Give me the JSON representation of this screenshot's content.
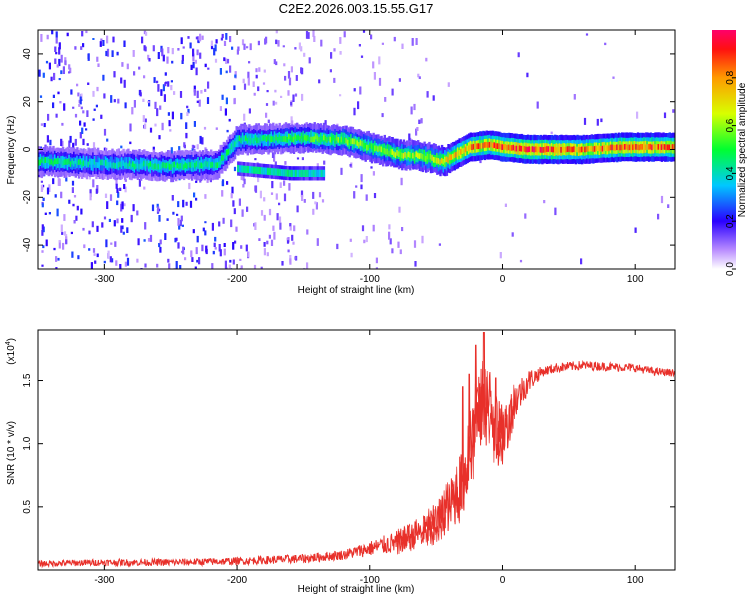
{
  "title": "C2E2.2026.003.15.55.G17",
  "chart_data": [
    {
      "type": "heatmap",
      "xlabel": "Height of straight line (km)",
      "ylabel": "Frequency (Hz)",
      "xlim": [
        -350,
        130
      ],
      "ylim": [
        -50,
        50
      ],
      "xticks": [
        -300,
        -200,
        -100,
        0,
        100
      ],
      "yticks": [
        -40,
        -20,
        0,
        20,
        40
      ],
      "colorbar": {
        "label": "Normalized spectral amplitude",
        "range": [
          0,
          1
        ],
        "ticks": [
          0.0,
          0.2,
          0.4,
          0.6,
          0.8
        ]
      },
      "ridge": {
        "description_points": [
          {
            "x": -350,
            "freq": -5,
            "amp": 0.45
          },
          {
            "x": -300,
            "freq": -6,
            "amp": 0.4
          },
          {
            "x": -250,
            "freq": -7,
            "amp": 0.45
          },
          {
            "x": -215,
            "freq": -6,
            "amp": 0.45
          },
          {
            "x": -200,
            "freq": 4,
            "amp": 0.45
          },
          {
            "x": -150,
            "freq": 5,
            "amp": 0.5
          },
          {
            "x": -120,
            "freq": 4,
            "amp": 0.55
          },
          {
            "x": -100,
            "freq": 1,
            "amp": 0.55
          },
          {
            "x": -80,
            "freq": -2,
            "amp": 0.6
          },
          {
            "x": -60,
            "freq": -3,
            "amp": 0.6
          },
          {
            "x": -45,
            "freq": -5,
            "amp": 0.65
          },
          {
            "x": -35,
            "freq": -2,
            "amp": 0.75
          },
          {
            "x": -25,
            "freq": 1,
            "amp": 0.8
          },
          {
            "x": -10,
            "freq": 2,
            "amp": 0.85
          },
          {
            "x": 0,
            "freq": 1,
            "amp": 0.85
          },
          {
            "x": 20,
            "freq": 0,
            "amp": 0.9
          },
          {
            "x": 60,
            "freq": 0,
            "amp": 0.8
          },
          {
            "x": 90,
            "freq": 1,
            "amp": 0.85
          },
          {
            "x": 130,
            "freq": 1,
            "amp": 0.85
          }
        ],
        "secondary_band": [
          {
            "x": -200,
            "freq": -8,
            "amp": 0.4
          },
          {
            "x": -160,
            "freq": -10,
            "amp": 0.45
          },
          {
            "x": -135,
            "freq": -10,
            "amp": 0.4
          }
        ]
      }
    },
    {
      "type": "line",
      "xlabel": "Height of straight line (km)",
      "ylabel": "SNR (10 * v/v)",
      "yscale_label_base": "(x10",
      "yscale_label_exp": "4",
      "yscale_label_end": ")",
      "xlim": [
        -350,
        130
      ],
      "ylim": [
        0,
        1.9
      ],
      "xticks": [
        -300,
        -200,
        -100,
        0,
        100
      ],
      "yticks": [
        0.5,
        1.0,
        1.5
      ],
      "ytick_labels": [
        "0.5",
        "1.0",
        "1.5"
      ],
      "series": [
        {
          "name": "SNR",
          "color": "#e8302a",
          "points": [
            [
              -350,
              0.05
            ],
            [
              -300,
              0.06
            ],
            [
              -250,
              0.06
            ],
            [
              -200,
              0.07
            ],
            [
              -175,
              0.08
            ],
            [
              -150,
              0.09
            ],
            [
              -120,
              0.12
            ],
            [
              -100,
              0.17
            ],
            [
              -80,
              0.22
            ],
            [
              -60,
              0.3
            ],
            [
              -50,
              0.38
            ],
            [
              -40,
              0.5
            ],
            [
              -30,
              0.7
            ],
            [
              -25,
              0.9
            ],
            [
              -20,
              1.15
            ],
            [
              -15,
              1.3
            ],
            [
              -10,
              1.3
            ],
            [
              -5,
              1.1
            ],
            [
              0,
              1.05
            ],
            [
              5,
              1.2
            ],
            [
              10,
              1.35
            ],
            [
              20,
              1.5
            ],
            [
              30,
              1.57
            ],
            [
              40,
              1.6
            ],
            [
              60,
              1.62
            ],
            [
              80,
              1.61
            ],
            [
              100,
              1.6
            ],
            [
              115,
              1.57
            ],
            [
              130,
              1.56
            ]
          ],
          "spikes": [
            [
              -14,
              1.88
            ],
            [
              -20,
              1.78
            ],
            [
              -30,
              1.45
            ],
            [
              -25,
              1.55
            ],
            [
              -5,
              1.52
            ]
          ],
          "noise": [
            [
              -350,
              0.025
            ],
            [
              -200,
              0.03
            ],
            [
              -120,
              0.04
            ],
            [
              -100,
              0.06
            ],
            [
              -60,
              0.12
            ],
            [
              -40,
              0.2
            ],
            [
              -30,
              0.3
            ],
            [
              -10,
              0.35
            ],
            [
              10,
              0.15
            ],
            [
              30,
              0.04
            ],
            [
              130,
              0.03
            ]
          ]
        }
      ]
    }
  ]
}
